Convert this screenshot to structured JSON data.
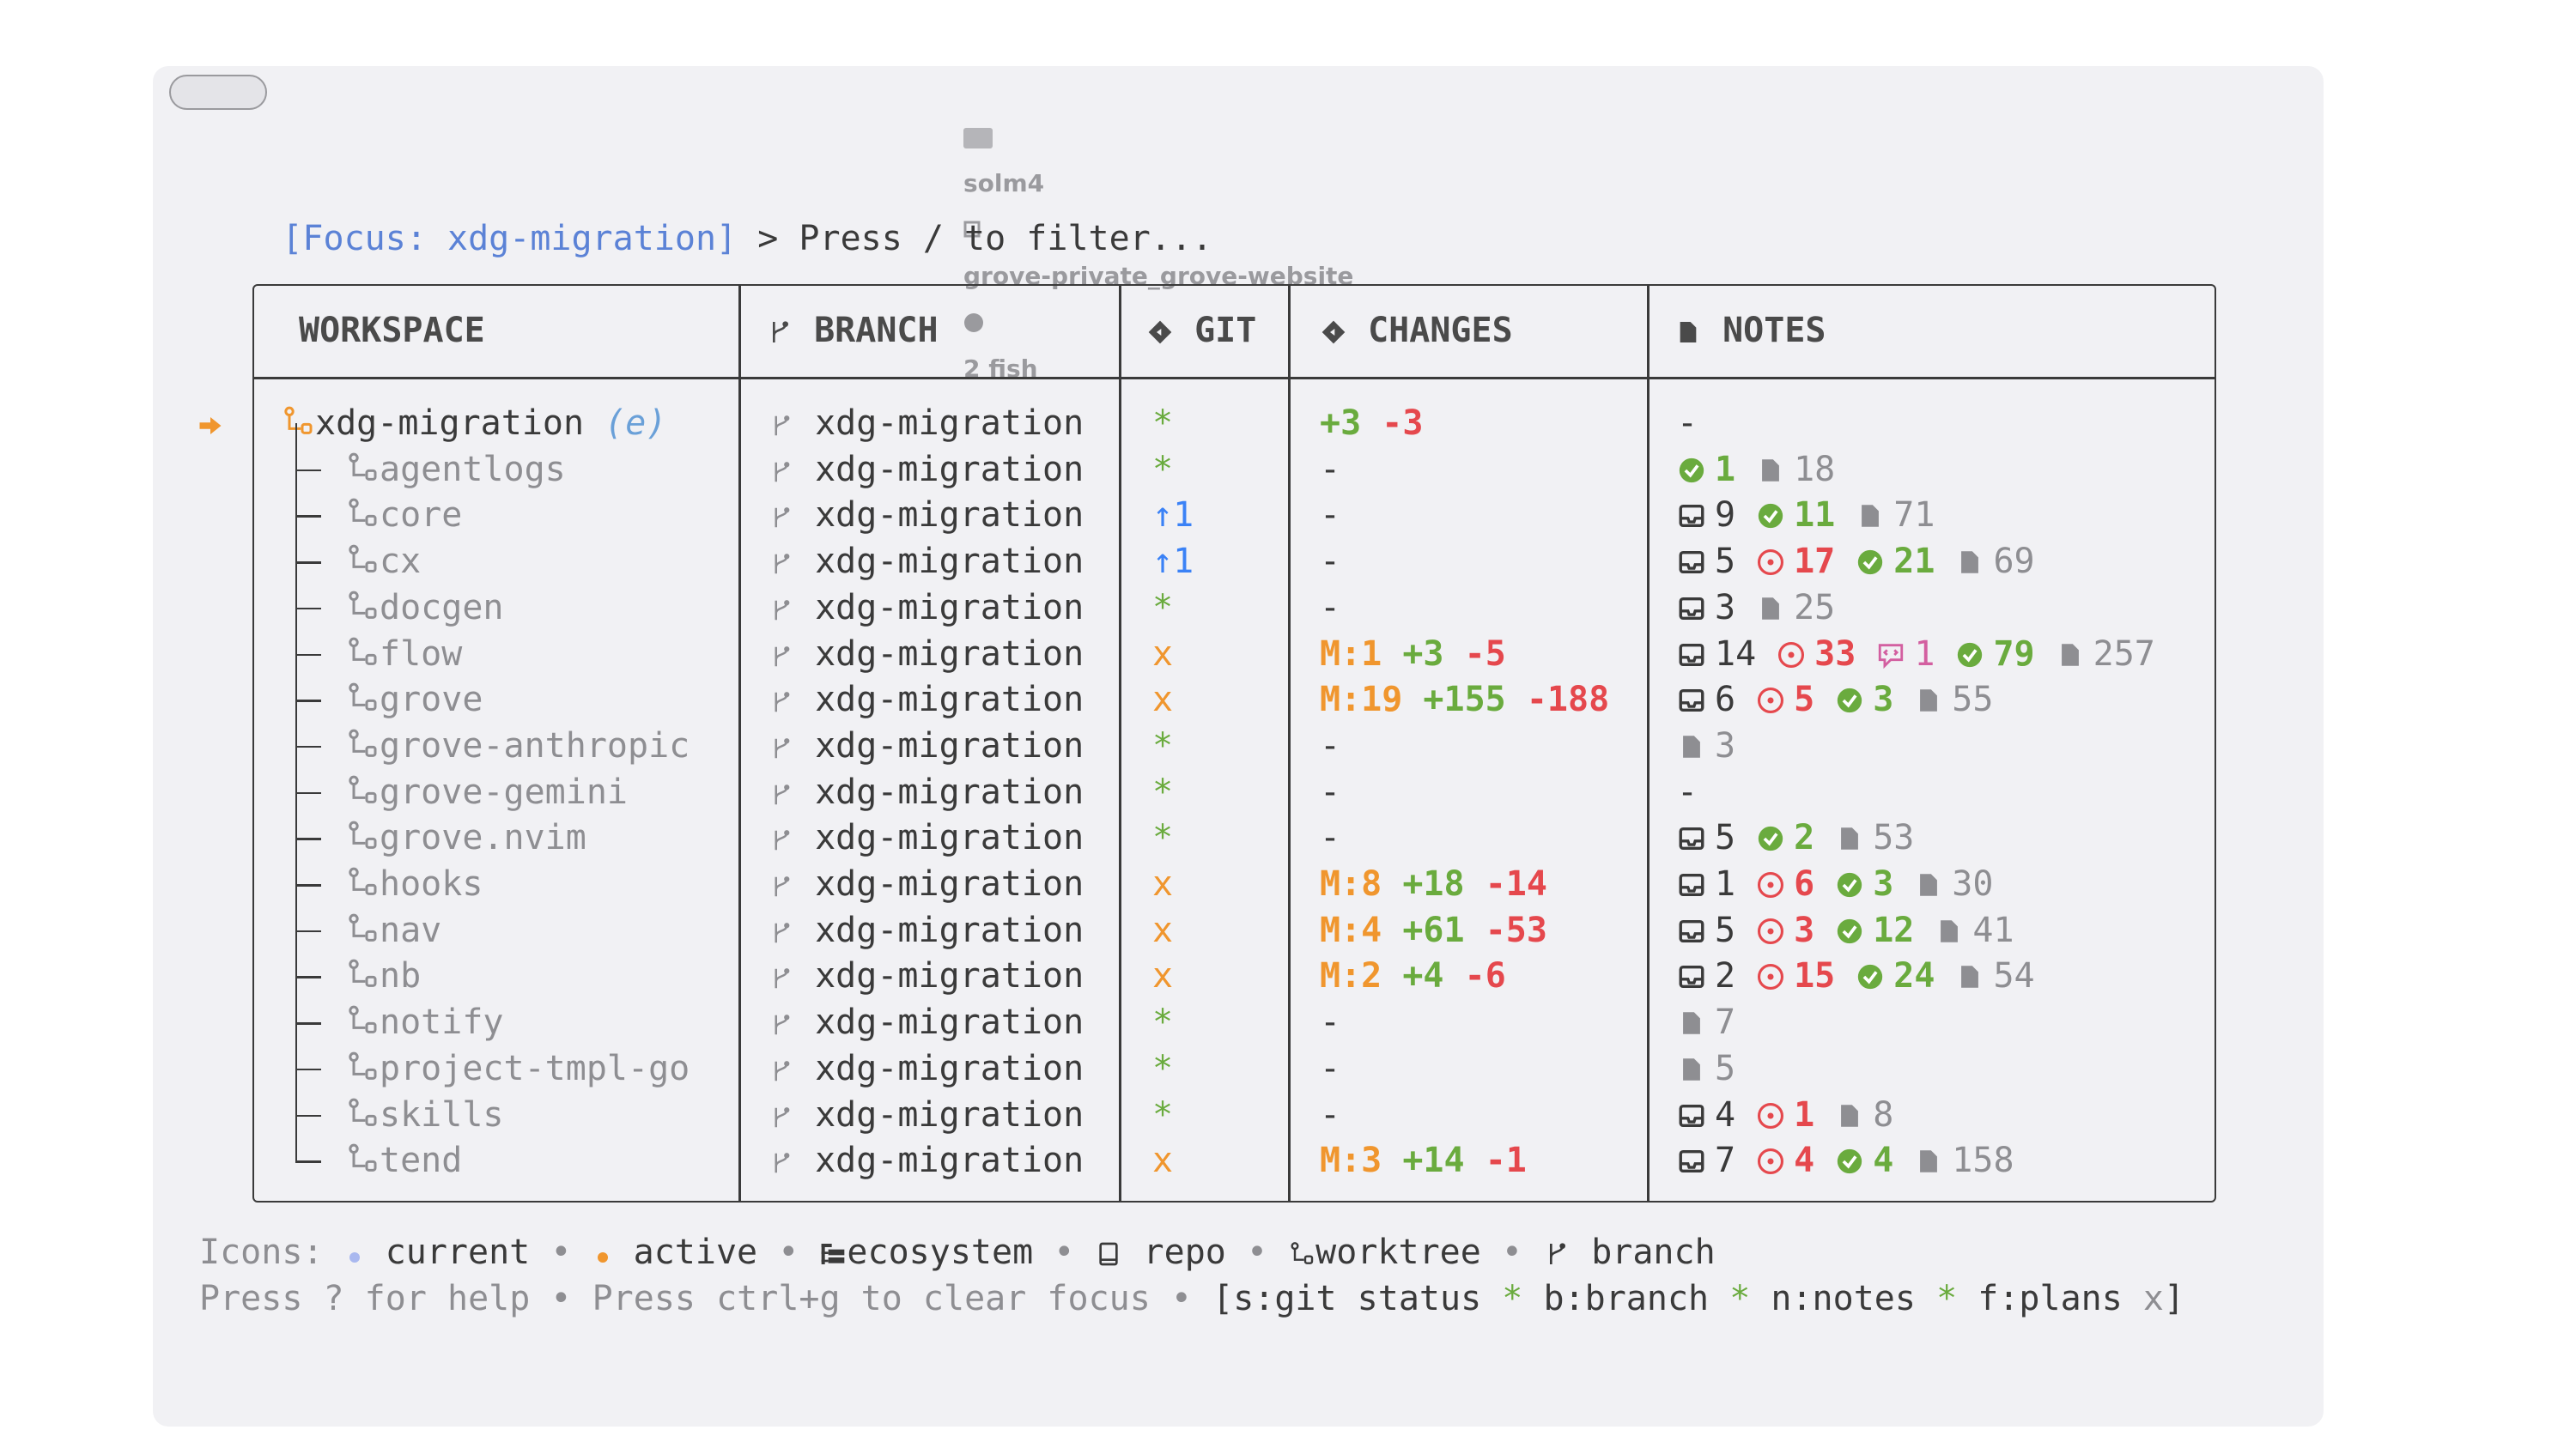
{
  "window": {
    "session": "solm4",
    "project": "grove-private_grove-website",
    "process": "2 fish"
  },
  "prompt": {
    "focus": "[Focus: xdg-migration]",
    "text": "> Press / to filter..."
  },
  "table": {
    "headers": [
      "WORKSPACE",
      "BRANCH",
      "GIT",
      "CHANGES",
      "NOTES"
    ],
    "rows": [
      {
        "workspace": "xdg-migration",
        "suffix": "(e)",
        "branch": "xdg-migration",
        "git": "*",
        "changes": [
          "+3",
          "-3"
        ],
        "notes": "-"
      },
      {
        "workspace": "agentlogs",
        "branch": "xdg-migration",
        "git": "*",
        "changes": [
          "-"
        ],
        "notes": [
          {
            "icon": "done",
            "value": 1
          },
          {
            "icon": "doc",
            "value": 18
          }
        ]
      },
      {
        "workspace": "core",
        "branch": "xdg-migration",
        "git": "↑1",
        "changes": [
          "-"
        ],
        "notes": [
          {
            "icon": "inbox",
            "value": 9
          },
          {
            "icon": "done",
            "value": 11
          },
          {
            "icon": "doc",
            "value": 71
          }
        ]
      },
      {
        "workspace": "cx",
        "branch": "xdg-migration",
        "git": "↑1",
        "changes": [
          "-"
        ],
        "notes": [
          {
            "icon": "inbox",
            "value": 5
          },
          {
            "icon": "issue",
            "value": 17
          },
          {
            "icon": "done",
            "value": 21
          },
          {
            "icon": "doc",
            "value": 69
          }
        ]
      },
      {
        "workspace": "docgen",
        "branch": "xdg-migration",
        "git": "*",
        "changes": [
          "-"
        ],
        "notes": [
          {
            "icon": "inbox",
            "value": 3
          },
          {
            "icon": "doc",
            "value": 25
          }
        ]
      },
      {
        "workspace": "flow",
        "branch": "xdg-migration",
        "git": "x",
        "changes": [
          "M:1",
          "+3",
          "-5"
        ],
        "notes": [
          {
            "icon": "inbox",
            "value": 14
          },
          {
            "icon": "issue",
            "value": 33
          },
          {
            "icon": "comment",
            "value": 1
          },
          {
            "icon": "done",
            "value": 79
          },
          {
            "icon": "doc",
            "value": 257
          }
        ]
      },
      {
        "workspace": "grove",
        "branch": "xdg-migration",
        "git": "x",
        "changes": [
          "M:19",
          "+155",
          "-188"
        ],
        "notes": [
          {
            "icon": "inbox",
            "value": 6
          },
          {
            "icon": "issue",
            "value": 5
          },
          {
            "icon": "done",
            "value": 3
          },
          {
            "icon": "doc",
            "value": 55
          }
        ]
      },
      {
        "workspace": "grove-anthropic",
        "branch": "xdg-migration",
        "git": "*",
        "changes": [
          "-"
        ],
        "notes": [
          {
            "icon": "doc",
            "value": 3
          }
        ]
      },
      {
        "workspace": "grove-gemini",
        "branch": "xdg-migration",
        "git": "*",
        "changes": [
          "-"
        ],
        "notes": "-"
      },
      {
        "workspace": "grove.nvim",
        "branch": "xdg-migration",
        "git": "*",
        "changes": [
          "-"
        ],
        "notes": [
          {
            "icon": "inbox",
            "value": 5
          },
          {
            "icon": "done",
            "value": 2
          },
          {
            "icon": "doc",
            "value": 53
          }
        ]
      },
      {
        "workspace": "hooks",
        "branch": "xdg-migration",
        "git": "x",
        "changes": [
          "M:8",
          "+18",
          "-14"
        ],
        "notes": [
          {
            "icon": "inbox",
            "value": 1
          },
          {
            "icon": "issue",
            "value": 6
          },
          {
            "icon": "done",
            "value": 3
          },
          {
            "icon": "doc",
            "value": 30
          }
        ]
      },
      {
        "workspace": "nav",
        "branch": "xdg-migration",
        "git": "x",
        "changes": [
          "M:4",
          "+61",
          "-53"
        ],
        "notes": [
          {
            "icon": "inbox",
            "value": 5
          },
          {
            "icon": "issue",
            "value": 3
          },
          {
            "icon": "done",
            "value": 12
          },
          {
            "icon": "doc",
            "value": 41
          }
        ]
      },
      {
        "workspace": "nb",
        "branch": "xdg-migration",
        "git": "x",
        "changes": [
          "M:2",
          "+4",
          "-6"
        ],
        "notes": [
          {
            "icon": "inbox",
            "value": 2
          },
          {
            "icon": "issue",
            "value": 15
          },
          {
            "icon": "done",
            "value": 24
          },
          {
            "icon": "doc",
            "value": 54
          }
        ]
      },
      {
        "workspace": "notify",
        "branch": "xdg-migration",
        "git": "*",
        "changes": [
          "-"
        ],
        "notes": [
          {
            "icon": "doc",
            "value": 7
          }
        ]
      },
      {
        "workspace": "project-tmpl-go",
        "branch": "xdg-migration",
        "git": "*",
        "changes": [
          "-"
        ],
        "notes": [
          {
            "icon": "doc",
            "value": 5
          }
        ]
      },
      {
        "workspace": "skills",
        "branch": "xdg-migration",
        "git": "*",
        "changes": [
          "-"
        ],
        "notes": [
          {
            "icon": "inbox",
            "value": 4
          },
          {
            "icon": "issue",
            "value": 1
          },
          {
            "icon": "doc",
            "value": 8
          }
        ]
      },
      {
        "workspace": "tend",
        "branch": "xdg-migration",
        "git": "x",
        "changes": [
          "M:3",
          "+14",
          "-1"
        ],
        "notes": [
          {
            "icon": "inbox",
            "value": 7
          },
          {
            "icon": "issue",
            "value": 4
          },
          {
            "icon": "done",
            "value": 4
          },
          {
            "icon": "doc",
            "value": 158
          }
        ]
      }
    ]
  },
  "footer": {
    "separator": "•",
    "icons_label": "Icons:",
    "icons": [
      "current",
      "active",
      "ecosystem",
      "repo",
      "worktree",
      "branch"
    ],
    "hints": [
      "Press ? for help",
      "Press ctrl+g to clear focus"
    ],
    "open": "[",
    "close": "]",
    "toggles": [
      {
        "label": "s:git status",
        "state": "*"
      },
      {
        "label": "b:branch",
        "state": "*"
      },
      {
        "label": "n:notes",
        "state": "*"
      },
      {
        "label": "f:plans",
        "state": "x"
      }
    ]
  }
}
